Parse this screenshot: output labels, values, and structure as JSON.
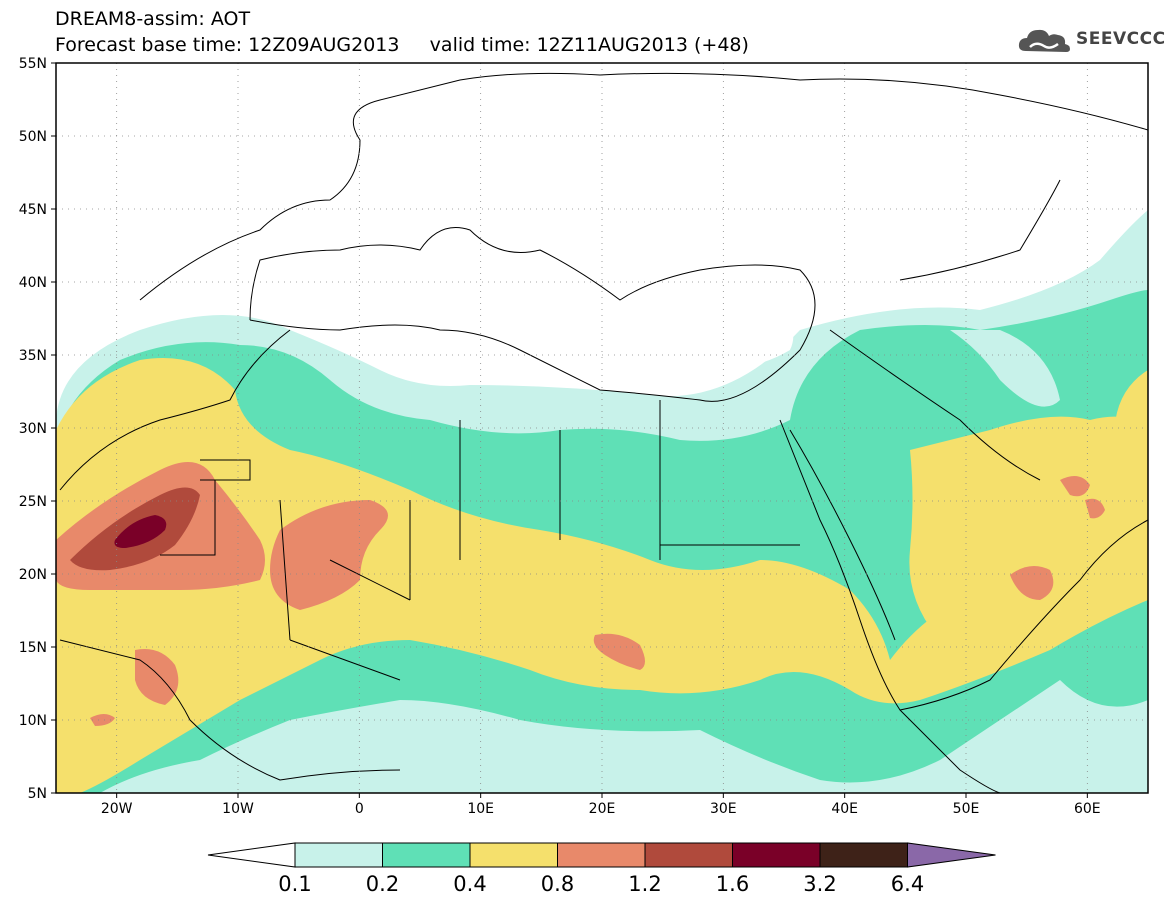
{
  "title": {
    "line1": "DREAM8-assim: AOT",
    "line2": "Forecast base time: 12Z09AUG2013     valid time: 12Z11AUG2013 (+48)"
  },
  "logo": {
    "text": "SEEVCCC",
    "icon": "cloud-icon"
  },
  "map": {
    "lon_range": [
      -25,
      65
    ],
    "lat_range": [
      5,
      55
    ],
    "lat_ticks": [
      "5N",
      "10N",
      "15N",
      "20N",
      "25N",
      "30N",
      "35N",
      "40N",
      "45N",
      "50N",
      "55N"
    ],
    "lon_ticks": [
      "20W",
      "10W",
      "0",
      "10E",
      "20E",
      "30E",
      "40E",
      "50E",
      "60E"
    ],
    "grid": "dotted"
  },
  "colorbar": {
    "labels": [
      "0.1",
      "0.2",
      "0.4",
      "0.8",
      "1.2",
      "1.6",
      "3.2",
      "6.4"
    ],
    "colors": [
      "#ffffff",
      "#c8f2ea",
      "#5fe0b6",
      "#f5e06c",
      "#e8896a",
      "#b04a3c",
      "#7a0028",
      "#3e2218",
      "#8a68a8"
    ]
  }
}
